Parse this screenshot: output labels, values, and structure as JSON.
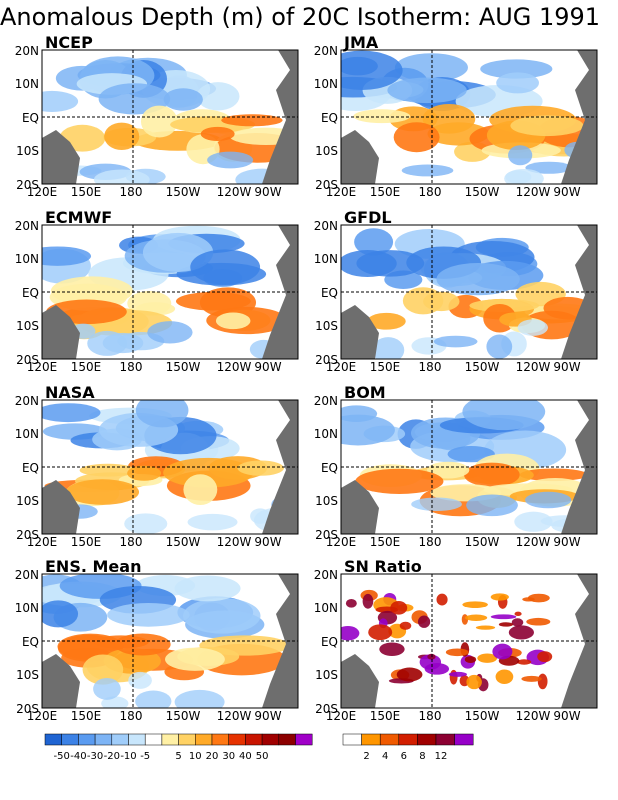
{
  "title": "Anomalous Depth (m) of 20C Isotherm: AUG 1991",
  "lon_labels": [
    "120E",
    "150E",
    "180",
    "150W",
    "120W",
    "90W"
  ],
  "lat_labels": [
    "20N",
    "10N",
    "EQ",
    "10S",
    "20S"
  ],
  "panels": [
    {
      "label": "NCEP"
    },
    {
      "label": "JMA"
    },
    {
      "label": "ECMWF"
    },
    {
      "label": "GFDL"
    },
    {
      "label": "NASA"
    },
    {
      "label": "BOM"
    },
    {
      "label": "ENS. Mean"
    },
    {
      "label": "SN Ratio"
    }
  ],
  "anomaly_legend": {
    "labels": [
      "-50",
      "-40",
      "-30",
      "-20",
      "-10",
      "-5",
      "5",
      "10",
      "20",
      "30",
      "40",
      "50"
    ],
    "colors": [
      "#1f64d2",
      "#3c82e6",
      "#5a9bf0",
      "#7db4f5",
      "#a0cdfa",
      "#c8e6fc",
      "#ffffff",
      "#fff0a5",
      "#ffd264",
      "#ffaa28",
      "#ff7814",
      "#e63200",
      "#c81400",
      "#a00000",
      "#8c0000",
      "#a000c8"
    ]
  },
  "sn_legend": {
    "labels": [
      "2",
      "4",
      "6",
      "8",
      "12"
    ],
    "colors": [
      "#ffffff",
      "#ff9600",
      "#f05a00",
      "#d21e00",
      "#a00000",
      "#8c0032",
      "#9600c8"
    ]
  }
}
